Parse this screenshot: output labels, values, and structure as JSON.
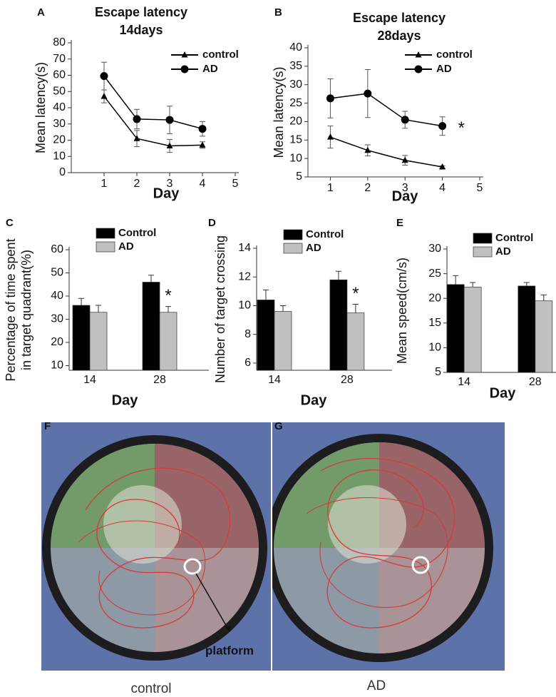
{
  "chart_data": [
    {
      "panel": "A",
      "type": "line",
      "title": "Escape latency",
      "subtitle": "14days",
      "xlabel": "Day",
      "ylabel": "Mean latency(s)",
      "x": [
        1,
        2,
        3,
        4
      ],
      "xlim": [
        0,
        5
      ],
      "xticks": [
        1,
        2,
        3,
        4,
        5
      ],
      "ylim": [
        0,
        80
      ],
      "yticks": [
        0,
        10,
        20,
        30,
        40,
        50,
        60,
        70,
        80
      ],
      "legend": "upper right",
      "series": [
        {
          "name": "control",
          "color": "#000000",
          "marker": "triangle",
          "values": [
            47,
            21,
            16.5,
            17
          ],
          "errors": [
            4,
            5,
            4,
            2
          ]
        },
        {
          "name": "AD",
          "color": "#000000",
          "marker": "circle",
          "values": [
            59.5,
            33,
            32.5,
            27
          ],
          "errors": [
            8.5,
            6,
            8.5,
            4.5
          ]
        }
      ]
    },
    {
      "panel": "B",
      "type": "line",
      "title": "Escape latency",
      "subtitle": "28days",
      "xlabel": "Day",
      "ylabel": "Mean latency(s)",
      "x": [
        1,
        2,
        3,
        4
      ],
      "xlim": [
        0.4,
        5
      ],
      "xticks": [
        1,
        2,
        3,
        4,
        5
      ],
      "ylim": [
        5,
        40
      ],
      "yticks": [
        5,
        10,
        15,
        20,
        25,
        30,
        35,
        40
      ],
      "legend": "upper right",
      "annotation": "*",
      "series": [
        {
          "name": "control",
          "color": "#000000",
          "marker": "triangle",
          "values": [
            15.8,
            12.2,
            9.5,
            7.7
          ],
          "errors": [
            3,
            1.5,
            1.3,
            0.3
          ]
        },
        {
          "name": "AD",
          "color": "#000000",
          "marker": "circle",
          "values": [
            26.3,
            27.6,
            20.5,
            18.8
          ],
          "errors": [
            5.3,
            6.5,
            2.3,
            2.5
          ]
        }
      ]
    },
    {
      "panel": "C",
      "type": "bar",
      "xlabel": "Day",
      "ylabel": [
        "Percentage of time spent",
        "in target quadrant(%)"
      ],
      "categories": [
        "14",
        "28"
      ],
      "ylim": [
        8,
        60
      ],
      "yticks": [
        10,
        20,
        30,
        40,
        50,
        60
      ],
      "legend": "upper center",
      "annotation": "*",
      "series": [
        {
          "name": "Control",
          "color": "#000000",
          "values": [
            36,
            46
          ],
          "errors": [
            3,
            3
          ]
        },
        {
          "name": "AD",
          "color": "#c0c0c0",
          "values": [
            33,
            33
          ],
          "errors": [
            3,
            2.5
          ]
        }
      ]
    },
    {
      "panel": "D",
      "type": "bar",
      "xlabel": "Day",
      "ylabel": "Number of target crossing",
      "categories": [
        "14",
        "28"
      ],
      "ylim": [
        5.5,
        14
      ],
      "yticks": [
        6,
        8,
        10,
        12,
        14
      ],
      "legend": "upper center",
      "annotation": "*",
      "series": [
        {
          "name": "Control",
          "color": "#000000",
          "values": [
            10.4,
            11.8
          ],
          "errors": [
            0.7,
            0.6
          ]
        },
        {
          "name": "AD",
          "color": "#c0c0c0",
          "values": [
            9.6,
            9.5
          ],
          "errors": [
            0.4,
            0.6
          ]
        }
      ]
    },
    {
      "panel": "E",
      "type": "bar",
      "xlabel": "Day",
      "ylabel": "Mean speed(cm/s)",
      "categories": [
        "14",
        "28"
      ],
      "ylim": [
        5,
        30
      ],
      "yticks": [
        5,
        10,
        15,
        20,
        25,
        30
      ],
      "legend": "upper center",
      "series": [
        {
          "name": "Control",
          "color": "#000000",
          "values": [
            22.8,
            22.5
          ],
          "errors": [
            1.8,
            0.7
          ]
        },
        {
          "name": "AD",
          "color": "#c0c0c0",
          "values": [
            22.3,
            19.5
          ],
          "errors": [
            0.9,
            1.2
          ]
        }
      ]
    }
  ],
  "images": [
    {
      "panel": "F",
      "caption": "control",
      "annotation": "platform"
    },
    {
      "panel": "G",
      "caption": "AD"
    }
  ]
}
